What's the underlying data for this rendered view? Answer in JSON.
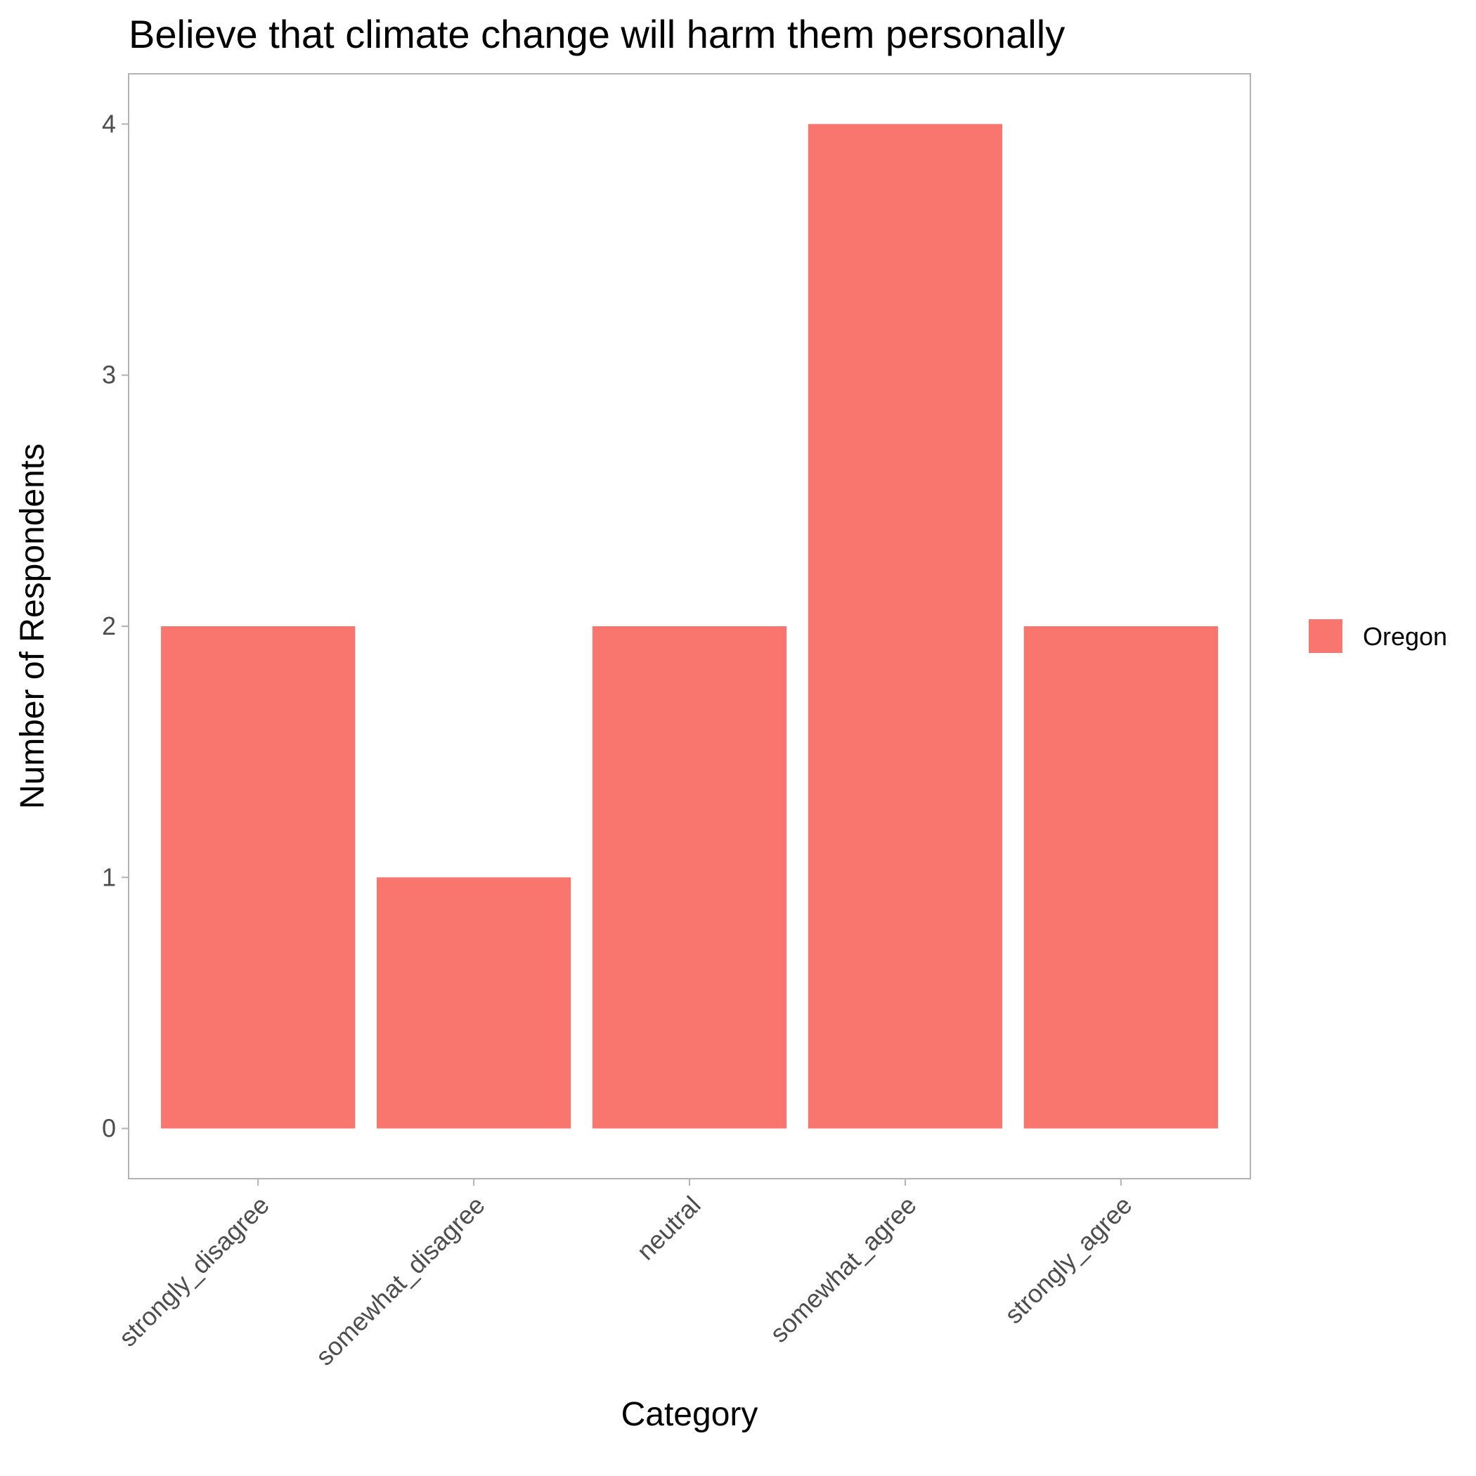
{
  "chart_data": {
    "type": "bar",
    "title": "Believe that climate change will harm them personally",
    "xlabel": "Category",
    "ylabel": "Number of Respondents",
    "categories": [
      "strongly_disagree",
      "somewhat_disagree",
      "neutral",
      "somewhat_agree",
      "strongly_agree"
    ],
    "series": [
      {
        "name": "Oregon",
        "values": [
          2,
          1,
          2,
          4,
          2
        ],
        "color": "#F8766D"
      }
    ],
    "ylim": [
      -0.2,
      4.2
    ],
    "yticks": [
      "0",
      "1",
      "2",
      "3",
      "4"
    ],
    "grid": false,
    "legend_position": "right"
  }
}
